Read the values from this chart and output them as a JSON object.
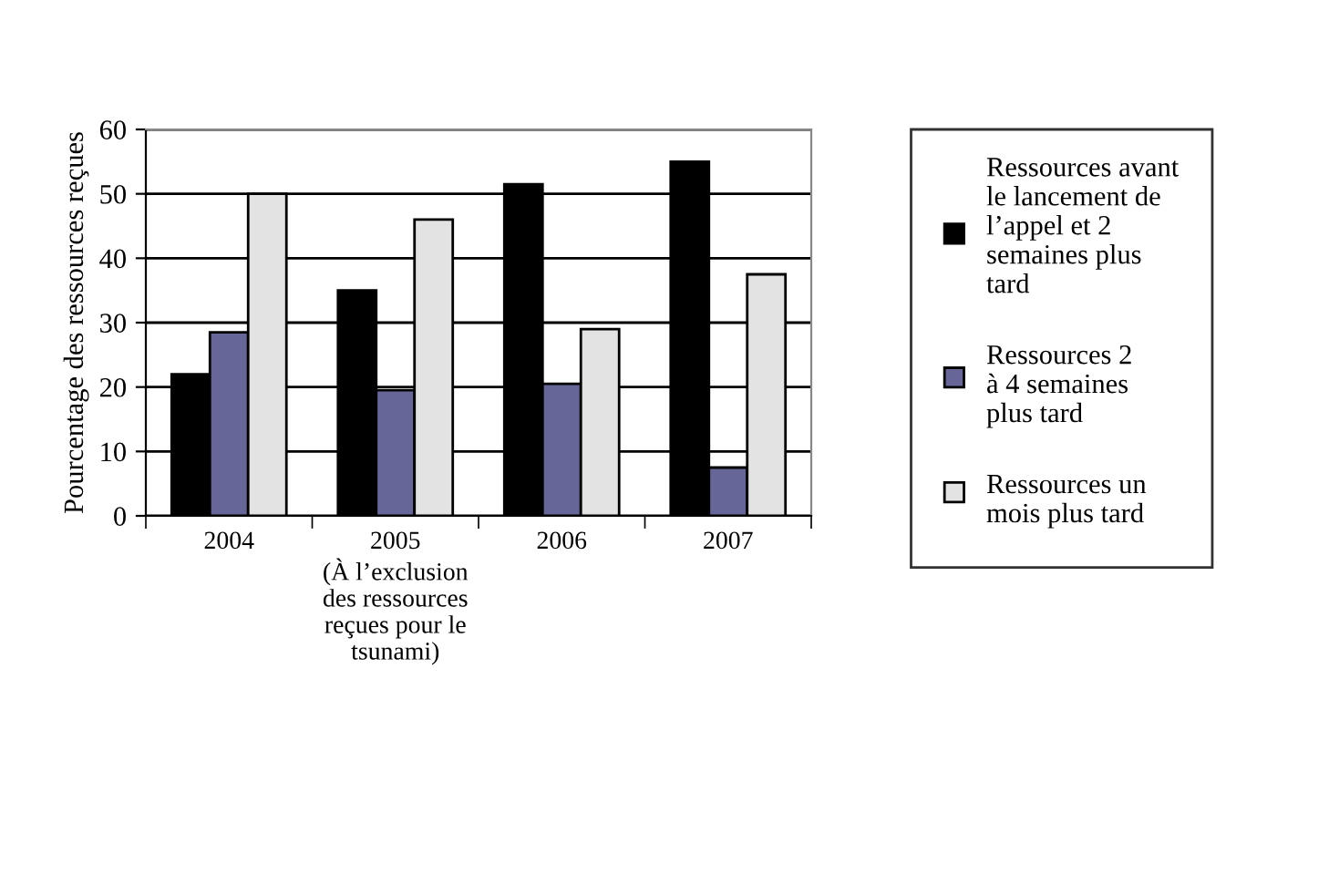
{
  "chart_data": {
    "type": "bar",
    "ylabel": "Pourcentage des ressources reçues",
    "categories": [
      "2004",
      "2005\n(À l’exclusion\ndes ressources\nreçues pour le\ntsunami)",
      "2006",
      "2007"
    ],
    "series": [
      {
        "name": "Ressources avant\nle lancement de\nl’appel et 2\nsemaines plus\ntard",
        "color": "#000000",
        "values": [
          22,
          35,
          51.5,
          55
        ]
      },
      {
        "name": "\nRessources 2\nà 4 semaines\nplus tard",
        "color": "#666699",
        "values": [
          28.5,
          19.5,
          20.5,
          7.5
        ]
      },
      {
        "name": "\nRessources un\nmois plus tard",
        "color": "#e3e3e3",
        "values": [
          50,
          46,
          29,
          37.5
        ]
      }
    ],
    "ylim": [
      0,
      60
    ],
    "yticks": [
      0,
      10,
      20,
      30,
      40,
      50,
      60
    ],
    "grid": "y",
    "legend": "right"
  }
}
